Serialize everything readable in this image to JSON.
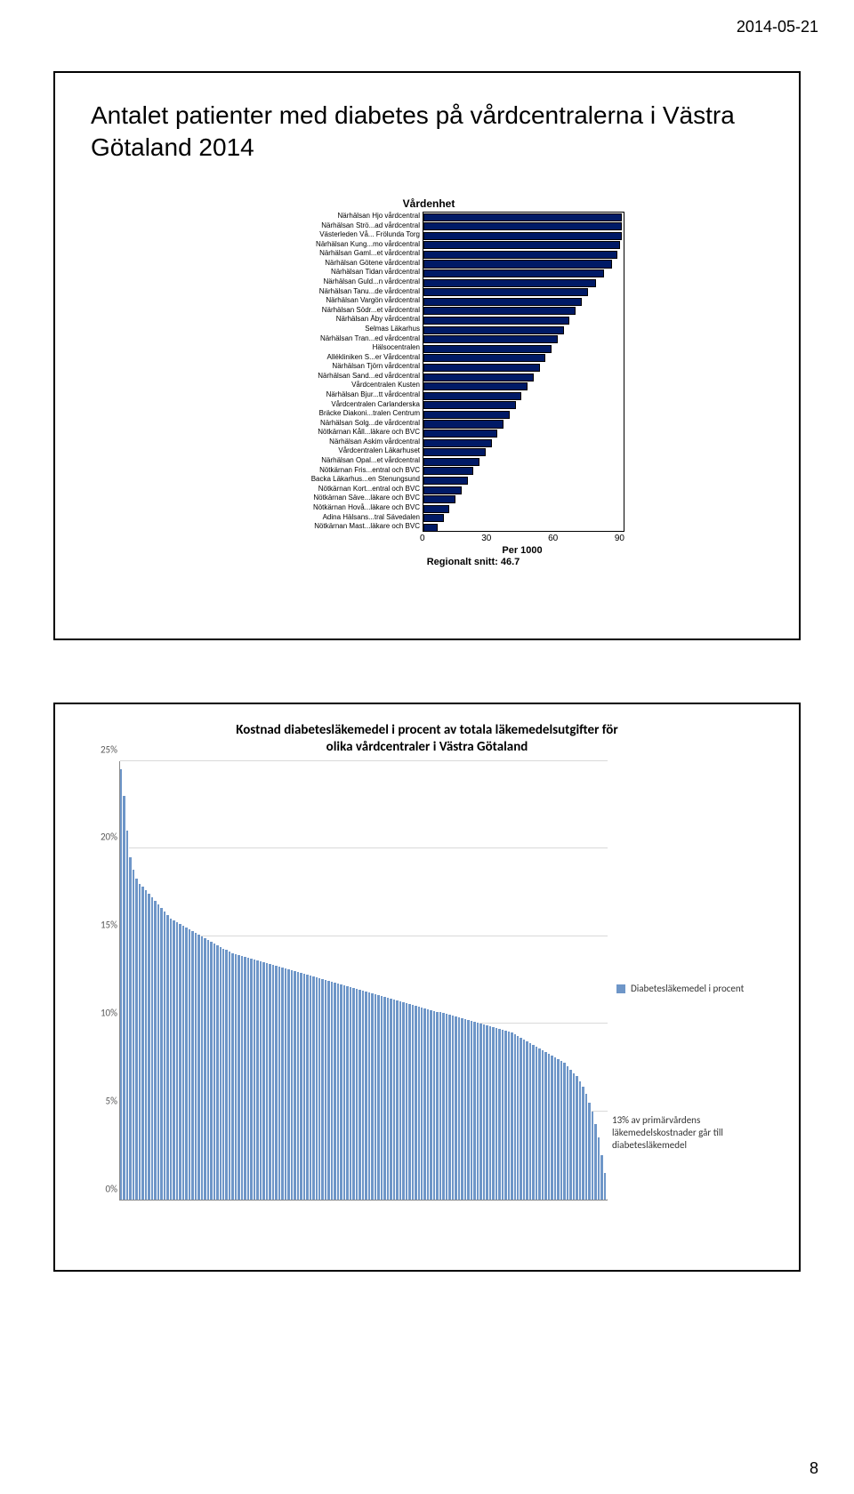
{
  "header_date": "2014-05-21",
  "page_number": "8",
  "slide1": {
    "title": "Antalet patienter med diabetes på vårdcentralerna i Västra Götaland 2014",
    "chart": {
      "type": "bar-horizontal",
      "title": "Vårdenhet",
      "xlabel": "Per 1000",
      "footer": "Regionalt snitt: 46.7",
      "xticks": [
        "0",
        "30",
        "60",
        "90"
      ],
      "xlim": [
        0,
        100
      ],
      "bar_color": "#001a66",
      "border_color": "#000000",
      "background_color": "#ffffff",
      "series": [
        {
          "label": "Närhälsan Hjo vårdcentral",
          "value": 99
        },
        {
          "label": "Närhälsan Strö...ad vårdcentral",
          "value": 99
        },
        {
          "label": "Västerleden Vå... Frölunda Torg",
          "value": 99
        },
        {
          "label": "Närhälsan Kung...mo vårdcentral",
          "value": 98
        },
        {
          "label": "Närhälsan Gaml...et vårdcentral",
          "value": 97
        },
        {
          "label": "Närhälsan Götene vårdcentral",
          "value": 94
        },
        {
          "label": "Närhälsan Tidan vårdcentral",
          "value": 90
        },
        {
          "label": "Närhälsan Guld...n vårdcentral",
          "value": 86
        },
        {
          "label": "Närhälsan Tanu...de vårdcentral",
          "value": 82
        },
        {
          "label": "Närhälsan Vargön vårdcentral",
          "value": 79
        },
        {
          "label": "Närhälsan Södr...et vårdcentral",
          "value": 76
        },
        {
          "label": "Närhälsan Åby vårdcentral",
          "value": 73
        },
        {
          "label": "Selmas Läkarhus",
          "value": 70
        },
        {
          "label": "Närhälsan Tran...ed vårdcentral",
          "value": 67
        },
        {
          "label": "Hälsocentralen",
          "value": 64
        },
        {
          "label": "Allékliniken S...er Vårdcentral",
          "value": 61
        },
        {
          "label": "Närhälsan Tjörn vårdcentral",
          "value": 58
        },
        {
          "label": "Närhälsan Sand...ed vårdcentral",
          "value": 55
        },
        {
          "label": "Vårdcentralen Kusten",
          "value": 52
        },
        {
          "label": "Närhälsan Bjur...tt vårdcentral",
          "value": 49
        },
        {
          "label": "Vårdcentralen Carlanderska",
          "value": 46
        },
        {
          "label": "Bräcke Diakoni...tralen Centrum",
          "value": 43
        },
        {
          "label": "Närhälsan Solg...de vårdcentral",
          "value": 40
        },
        {
          "label": "Nötkärnan Kåll...läkare och BVC",
          "value": 37
        },
        {
          "label": "Närhälsan Askim vårdcentral",
          "value": 34
        },
        {
          "label": "Vårdcentralen Läkarhuset",
          "value": 31
        },
        {
          "label": "Närhälsan Opal...et vårdcentral",
          "value": 28
        },
        {
          "label": "Nötkärnan Fris...entral och BVC",
          "value": 25
        },
        {
          "label": "Backa Läkarhus...en Stenungsund",
          "value": 22
        },
        {
          "label": "Nötkärnan Kort...entral och BVC",
          "value": 19
        },
        {
          "label": "Nötkärnan Säve...läkare och BVC",
          "value": 16
        },
        {
          "label": "Nötkärnan Hovå...läkare och BVC",
          "value": 13
        },
        {
          "label": "Adina Hälsans...tral Sävedalen",
          "value": 10
        },
        {
          "label": "Nötkärnan Mast...läkare och BVC",
          "value": 7
        }
      ]
    }
  },
  "slide2": {
    "chart": {
      "type": "bar",
      "title_line1": "Kostnad diabetesläkemedel i procent av totala läkemedelsutgifter för",
      "title_line2": "olika vårdcentraler i Västra Götaland",
      "legend_label": "Diabetesläkemedel i procent",
      "annotation": "13% av primärvårdens läkemedelskostnader går till diabetesläkemedel",
      "bar_color": "#6e96c8",
      "grid_color": "#d9d9d9",
      "axis_color": "#8a8a8a",
      "yticks": [
        "0%",
        "5%",
        "10%",
        "15%",
        "20%",
        "25%"
      ],
      "ylim": [
        0,
        25
      ],
      "values": [
        24.5,
        23,
        21,
        19.5,
        18.8,
        18.3,
        18,
        17.8,
        17.6,
        17.4,
        17.2,
        17,
        16.8,
        16.6,
        16.4,
        16.2,
        16,
        15.9,
        15.8,
        15.7,
        15.6,
        15.5,
        15.4,
        15.3,
        15.2,
        15.1,
        15,
        14.9,
        14.8,
        14.7,
        14.6,
        14.5,
        14.4,
        14.3,
        14.2,
        14.1,
        14,
        13.95,
        13.9,
        13.85,
        13.8,
        13.75,
        13.7,
        13.65,
        13.6,
        13.55,
        13.5,
        13.45,
        13.4,
        13.35,
        13.3,
        13.25,
        13.2,
        13.15,
        13.1,
        13.05,
        13,
        12.95,
        12.9,
        12.85,
        12.8,
        12.75,
        12.7,
        12.65,
        12.6,
        12.55,
        12.5,
        12.45,
        12.4,
        12.35,
        12.3,
        12.25,
        12.2,
        12.15,
        12.1,
        12.05,
        12,
        11.95,
        11.9,
        11.85,
        11.8,
        11.75,
        11.7,
        11.65,
        11.6,
        11.55,
        11.5,
        11.45,
        11.4,
        11.35,
        11.3,
        11.25,
        11.2,
        11.15,
        11.1,
        11.05,
        11,
        10.95,
        10.9,
        10.85,
        10.8,
        10.75,
        10.7,
        10.65,
        10.6,
        10.55,
        10.5,
        10.45,
        10.4,
        10.35,
        10.3,
        10.25,
        10.2,
        10.15,
        10.1,
        10.05,
        10,
        9.95,
        9.9,
        9.85,
        9.8,
        9.75,
        9.7,
        9.65,
        9.6,
        9.55,
        9.5,
        9.4,
        9.3,
        9.2,
        9.1,
        9,
        8.9,
        8.8,
        8.7,
        8.6,
        8.5,
        8.4,
        8.3,
        8.2,
        8.1,
        8,
        7.9,
        7.8,
        7.6,
        7.4,
        7.2,
        7,
        6.7,
        6.4,
        6,
        5.5,
        5,
        4.3,
        3.5,
        2.5,
        1.5
      ]
    }
  }
}
